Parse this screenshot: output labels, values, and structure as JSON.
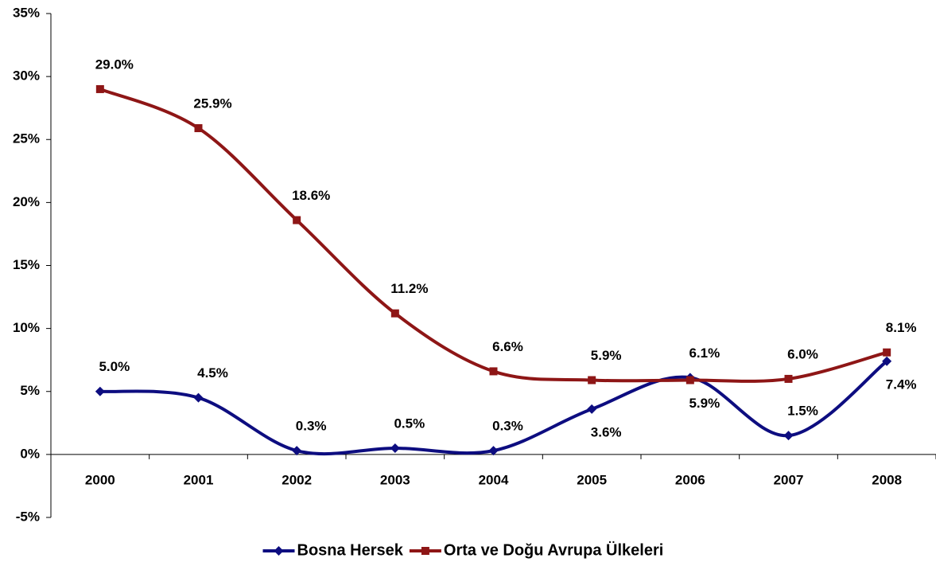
{
  "chart_data": {
    "type": "line",
    "categories": [
      "2000",
      "2001",
      "2002",
      "2003",
      "2004",
      "2005",
      "2006",
      "2007",
      "2008"
    ],
    "series": [
      {
        "name": "Bosna Hersek",
        "color": "#0d0d80",
        "marker": "diamond",
        "values": [
          5.0,
          4.5,
          0.3,
          0.5,
          0.3,
          3.6,
          6.1,
          1.5,
          7.4
        ],
        "value_labels": [
          "5.0%",
          "4.5%",
          "0.3%",
          "0.5%",
          "0.3%",
          "3.6%",
          "6.1%",
          "1.5%",
          "7.4%"
        ]
      },
      {
        "name": "Orta ve Doğu Avrupa Ülkeleri",
        "color": "#8e1616",
        "marker": "square",
        "values": [
          29.0,
          25.9,
          18.6,
          11.2,
          6.6,
          5.9,
          5.9,
          6.0,
          8.1
        ],
        "value_labels": [
          "29.0%",
          "25.9%",
          "18.6%",
          "11.2%",
          "6.6%",
          "5.9%",
          "5.9%",
          "6.0%",
          "8.1%"
        ]
      }
    ],
    "ylim": [
      -5,
      35
    ],
    "yticks": [
      {
        "value": -5,
        "label": "-5%"
      },
      {
        "value": 0,
        "label": "0%"
      },
      {
        "value": 5,
        "label": "5%"
      },
      {
        "value": 10,
        "label": "10%"
      },
      {
        "value": 15,
        "label": "15%"
      },
      {
        "value": 20,
        "label": "20%"
      },
      {
        "value": 25,
        "label": "25%"
      },
      {
        "value": 30,
        "label": "30%"
      },
      {
        "value": 35,
        "label": "35%"
      }
    ],
    "smooth": true,
    "legend": "bottom"
  }
}
